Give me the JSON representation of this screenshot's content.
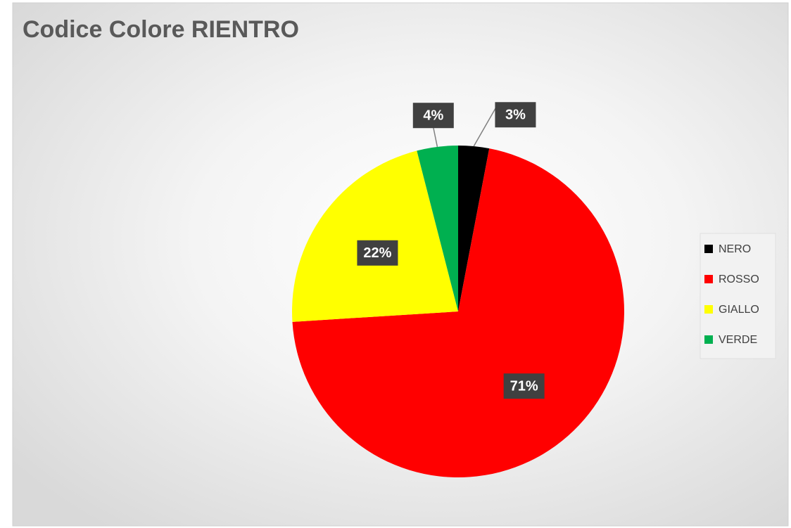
{
  "chart_data": {
    "type": "pie",
    "title": "Codice Colore RIENTRO",
    "categories": [
      "NERO",
      "ROSSO",
      "GIALLO",
      "VERDE"
    ],
    "values": [
      3,
      71,
      22,
      4
    ],
    "value_labels": [
      "3%",
      "71%",
      "22%",
      "4%"
    ],
    "colors": [
      "#000000",
      "#ff0000",
      "#ffff00",
      "#00b050"
    ],
    "legend": "right"
  }
}
